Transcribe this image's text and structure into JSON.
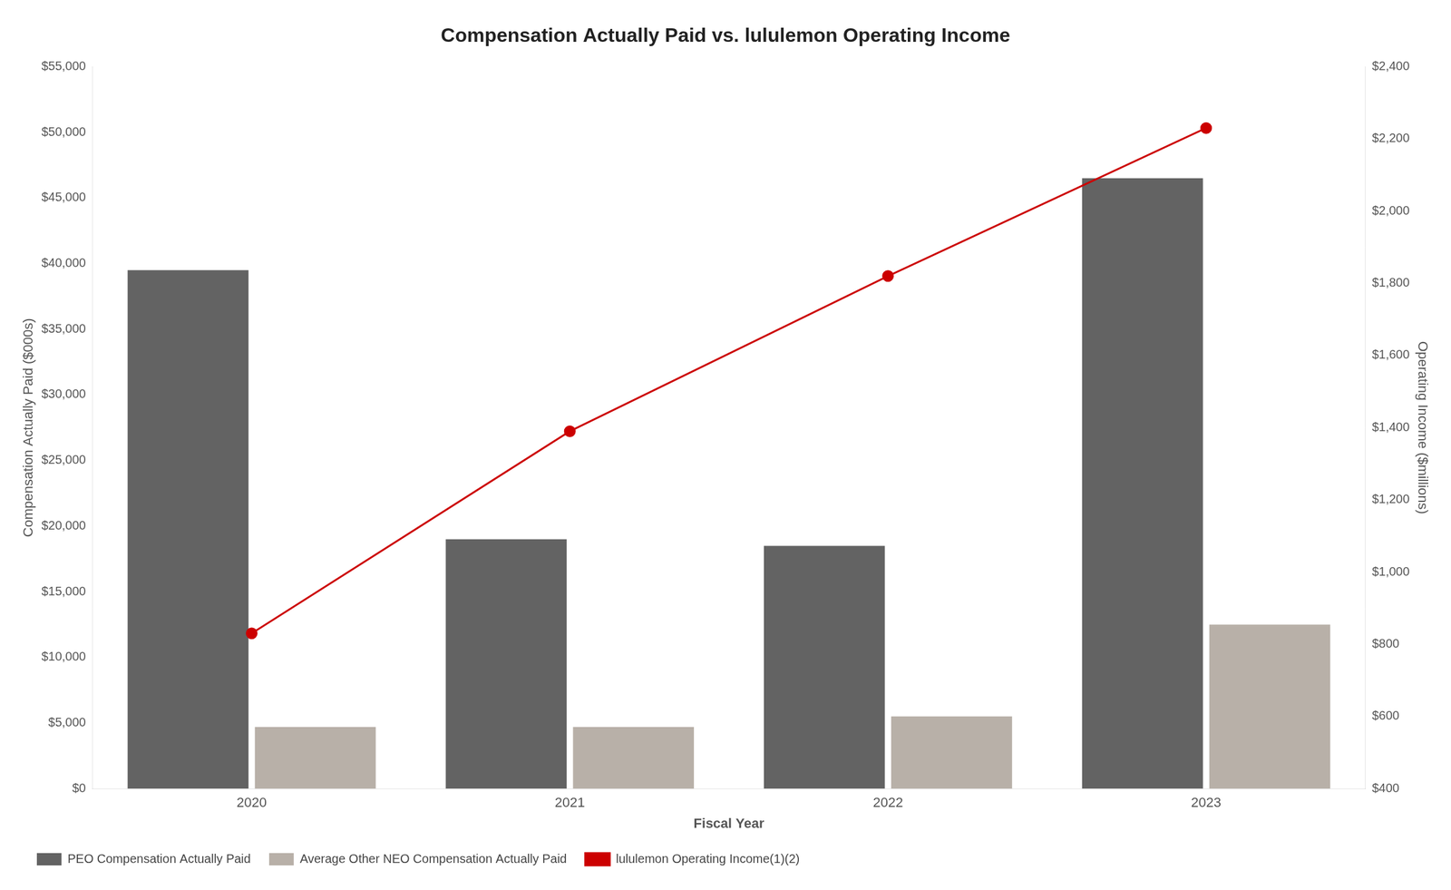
{
  "chart_data": {
    "type": "bar",
    "title": "Compensation Actually Paid vs. lululemon Operating Income",
    "xlabel": "Fiscal Year",
    "ylabel": "Compensation Actually Paid ($000s)",
    "y2label": "Operating Income ($millions)",
    "categories": [
      "2020",
      "2021",
      "2022",
      "2023"
    ],
    "series": [
      {
        "name": "PEO Compensation Actually Paid",
        "color": "#636363",
        "values": [
          39500,
          19000,
          18500,
          46500
        ]
      },
      {
        "name": "Average Other NEO Compensation Actually Paid",
        "color": "#b8b0a8",
        "values": [
          4700,
          4700,
          5500,
          12500
        ]
      },
      {
        "name": "lululemon Operating Income(1)(2)",
        "type": "line",
        "color": "#cc0000",
        "marker": "circle",
        "axis": "y2",
        "values": [
          830,
          1390,
          1820,
          2230
        ]
      }
    ],
    "ylim": [
      0,
      55000
    ],
    "yticks": [
      {
        "value": 0,
        "label": "$0"
      },
      {
        "value": 5000,
        "label": "$5,000"
      },
      {
        "value": 10000,
        "label": "$10,000"
      },
      {
        "value": 15000,
        "label": "$15,000"
      },
      {
        "value": 20000,
        "label": "$20,000"
      },
      {
        "value": 25000,
        "label": "$25,000"
      },
      {
        "value": 30000,
        "label": "$30,000"
      },
      {
        "value": 35000,
        "label": "$35,000"
      },
      {
        "value": 40000,
        "label": "$40,000"
      },
      {
        "value": 45000,
        "label": "$45,000"
      },
      {
        "value": 50000,
        "label": "$50,000"
      },
      {
        "value": 55000,
        "label": "$55,000"
      }
    ],
    "y2lim": [
      400,
      2400
    ],
    "y2ticks": [
      {
        "value": 400,
        "label": "$400"
      },
      {
        "value": 600,
        "label": "$600"
      },
      {
        "value": 800,
        "label": "$800"
      },
      {
        "value": 1000,
        "label": "$1,000"
      },
      {
        "value": 1200,
        "label": "$1,200"
      },
      {
        "value": 1400,
        "label": "$1,400"
      },
      {
        "value": 1600,
        "label": "$1,600"
      },
      {
        "value": 1800,
        "label": "$1,800"
      },
      {
        "value": 2000,
        "label": "$2,000"
      },
      {
        "value": 2200,
        "label": "$2,200"
      },
      {
        "value": 2400,
        "label": "$2,400"
      }
    ],
    "grid": false,
    "legend": "bottom"
  }
}
